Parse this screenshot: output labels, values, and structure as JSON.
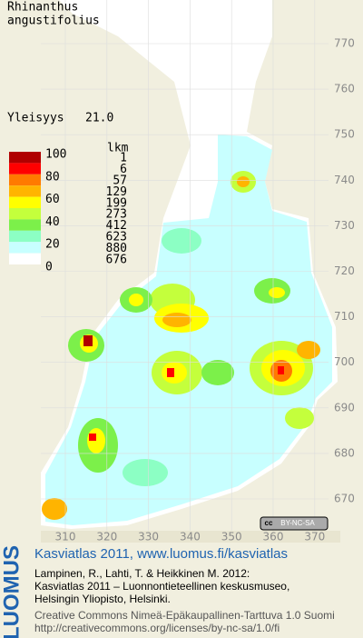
{
  "title": [
    "Rhinanthus",
    "angustifolius"
  ],
  "frequency_label": "Yleisyys",
  "frequency": "21.0",
  "legend": {
    "count_header": "lkm",
    "scale": [
      100,
      80,
      60,
      40,
      20,
      0
    ],
    "classes": [
      {
        "color": "#b00000",
        "count": 1
      },
      {
        "color": "#ff0000",
        "count": 6
      },
      {
        "color": "#ff7a00",
        "count": 57
      },
      {
        "color": "#ffb400",
        "count": 129
      },
      {
        "color": "#ffff00",
        "count": 199
      },
      {
        "color": "#c4ff3c",
        "count": 273
      },
      {
        "color": "#7cf04a",
        "count": 412
      },
      {
        "color": "#8cffc4",
        "count": 623
      },
      {
        "color": "#c8ffff",
        "count": 880
      },
      {
        "color": "#ffffff",
        "count": 676
      }
    ]
  },
  "map": {
    "yticks": [
      770,
      760,
      750,
      740,
      730,
      720,
      710,
      700,
      690,
      680,
      670
    ],
    "xticks": [
      310,
      320,
      330,
      340,
      350,
      360,
      370
    ],
    "license_badge": "BY-NC-SA"
  },
  "footer": {
    "logo": "LUOMUS",
    "lines": [
      "Kasviatlas 2011, www.luomus.fi/kasviatlas",
      "Lampinen, R., Lahti, T. & Heikkinen M. 2012:",
      "Kasviatlas 2011 – Luonnontieteellinen keskusmuseo,",
      "Helsingin Yliopisto, Helsinki.",
      "Creative Commons Nimeä-Epäkaupallinen-Tarttuva 1.0 Suomi",
      "http://creativecommons.org/licenses/by-nc-sa/1.0/fi"
    ]
  }
}
